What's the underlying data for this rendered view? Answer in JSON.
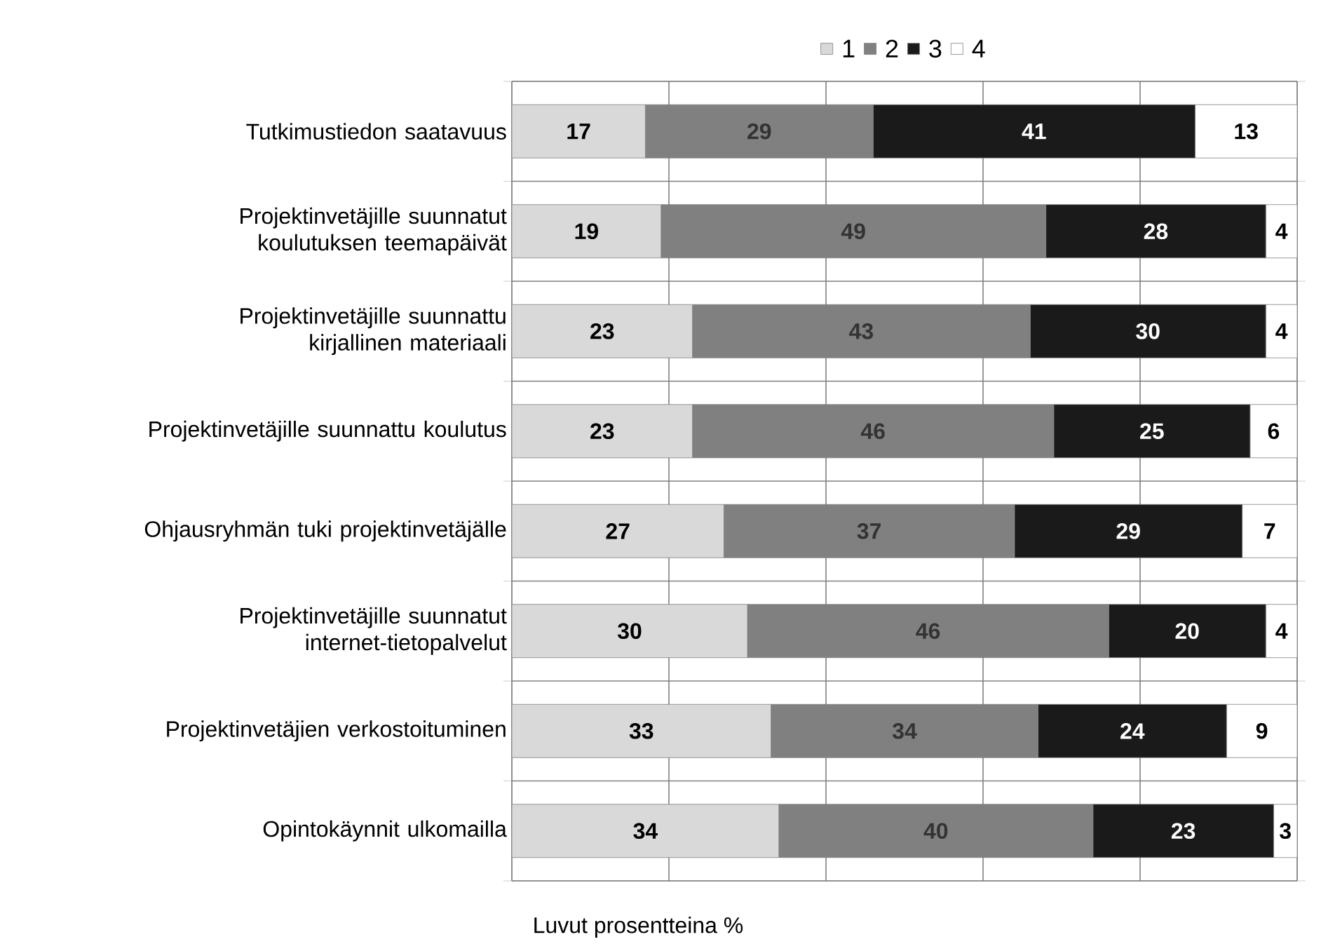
{
  "chart_data": {
    "type": "bar",
    "orientation": "horizontal",
    "stacked": true,
    "data_labels": true,
    "grid": true,
    "legend": "top",
    "tick_labels": "y",
    "xlabel": "Luvut prosentteina %",
    "categories": [
      "Tutkimustiedon saatavuus",
      "Projektinvetäjille suunnatut koulutuksen teemapäivät",
      "Projektinvetäjille suunnattu kirjallinen materiaali",
      "Projektinvetäjille suunnattu koulutus",
      "Ohjausryhmän tuki projektinvetäjälle",
      "Projektinvetäjille suunnatut internet-tietopalvelut",
      "Projektinvetäjien verkostoituminen",
      "Opintokäynnit ulkomailla"
    ],
    "series": [
      {
        "name": "1",
        "color": "#d9d9d9",
        "values": [
          17,
          19,
          23,
          23,
          27,
          30,
          33,
          34
        ]
      },
      {
        "name": "2",
        "color": "#808080",
        "values": [
          29,
          49,
          43,
          46,
          37,
          46,
          34,
          40
        ]
      },
      {
        "name": "3",
        "color": "#1a1a1a",
        "values": [
          41,
          28,
          30,
          25,
          29,
          20,
          24,
          23
        ]
      },
      {
        "name": "4",
        "color": "#ffffff",
        "values": [
          13,
          4,
          4,
          6,
          7,
          4,
          9,
          3
        ]
      }
    ]
  }
}
